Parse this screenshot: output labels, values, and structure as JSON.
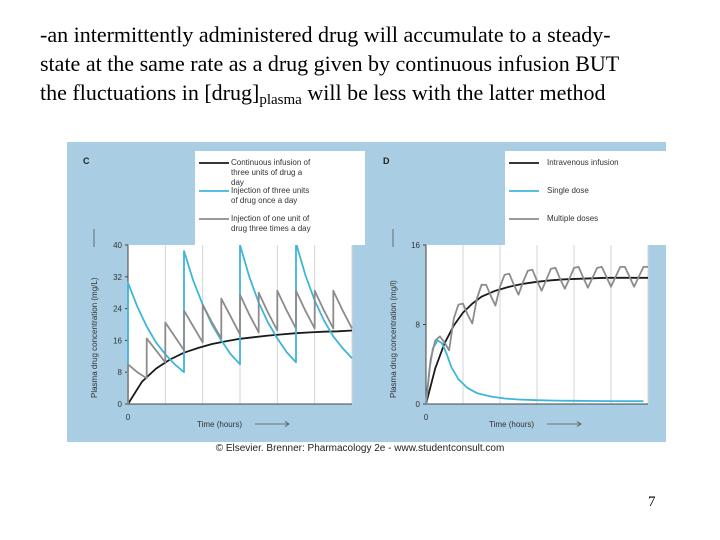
{
  "slide": {
    "line1": "-an intermittently administered drug will accumulate to a steady-",
    "line2": "state at the same rate as a drug given by continuous infusion BUT",
    "line3_pre": "the fluctuations in [drug]",
    "line3_sub": "plasma",
    "line3_post": " will be less with the latter method",
    "page_number": "7"
  },
  "credit": "© Elsevier. Brenner: Pharmacology 2e - www.studentconsult.com",
  "chart_data": [
    {
      "type": "line",
      "panel_label": "C",
      "xlabel": "Time (hours)",
      "ylabel": "Plasma drug concentration (mg/L)",
      "x_tick_labels": [
        "0"
      ],
      "y_tick_labels": [
        "0",
        "8",
        "16",
        "24",
        "32",
        "40"
      ],
      "ylim": [
        0,
        40
      ],
      "x_range": [
        0,
        96
      ],
      "grid": true,
      "legend_position": "top",
      "series": [
        {
          "name": "Continuous infusion of three units of drug a day",
          "color": "#1a1a1a",
          "x": [
            0,
            6,
            12,
            18,
            24,
            30,
            36,
            42,
            48,
            54,
            60,
            66,
            72,
            78,
            84,
            90,
            96
          ],
          "y": [
            0,
            5.6,
            8.9,
            11.2,
            12.9,
            14.1,
            15.1,
            15.8,
            16.4,
            16.8,
            17.2,
            17.5,
            17.8,
            18.0,
            18.2,
            18.3,
            18.5
          ]
        },
        {
          "name": "Injection of three units of drug once a day",
          "color": "#3fb5d8",
          "x": [
            0,
            0,
            4,
            8,
            12,
            16,
            20,
            24,
            24,
            28,
            32,
            36,
            40,
            44,
            48,
            48,
            52,
            56,
            60,
            64,
            68,
            72,
            72,
            76,
            80,
            84,
            88,
            92,
            96
          ],
          "y": [
            0,
            30.5,
            24.5,
            19.5,
            15.5,
            12.5,
            10.0,
            8.0,
            38.5,
            31.0,
            25.0,
            20.0,
            16.0,
            12.5,
            10.0,
            40.0,
            32.0,
            25.5,
            20.5,
            16.5,
            13.0,
            10.5,
            40.5,
            32.5,
            26.0,
            21.0,
            17.0,
            14.0,
            11.5
          ]
        },
        {
          "name": "Injection of one unit of drug three times a day",
          "color": "#8c8c8c",
          "x": [
            0,
            0,
            4,
            8,
            8,
            12,
            16,
            16,
            20,
            24,
            24,
            28,
            32,
            32,
            36,
            40,
            40,
            44,
            48,
            48,
            52,
            56,
            56,
            60,
            64,
            64,
            68,
            72,
            72,
            76,
            80,
            80,
            84,
            88,
            88,
            92,
            96
          ],
          "y": [
            0,
            10.0,
            8.0,
            6.5,
            16.5,
            13.5,
            10.5,
            20.5,
            17.0,
            13.5,
            23.5,
            19.5,
            15.5,
            25.0,
            20.5,
            16.5,
            26.5,
            22.0,
            17.5,
            27.5,
            22.5,
            18.0,
            28.0,
            23.0,
            18.5,
            28.5,
            23.5,
            19.0,
            28.5,
            23.5,
            19.0,
            28.5,
            23.5,
            19.0,
            28.5,
            23.5,
            19.0
          ]
        }
      ]
    },
    {
      "type": "line",
      "panel_label": "D",
      "xlabel": "Time (hours)",
      "ylabel": "Plasma drug concentration (mg/l)",
      "x_tick_labels": [
        "0"
      ],
      "y_tick_labels": [
        "0",
        "8",
        "16"
      ],
      "ylim": [
        0,
        16
      ],
      "x_range": [
        0,
        96
      ],
      "grid": true,
      "legend_position": "top",
      "series": [
        {
          "name": "Intravenous infusion",
          "color": "#1a1a1a",
          "x": [
            0,
            4,
            8,
            12,
            16,
            20,
            24,
            30,
            36,
            42,
            48,
            54,
            60,
            66,
            72,
            78,
            84,
            90,
            96
          ],
          "y": [
            0,
            3.6,
            6.1,
            7.9,
            9.2,
            10.1,
            10.8,
            11.4,
            11.8,
            12.1,
            12.3,
            12.45,
            12.55,
            12.6,
            12.65,
            12.7,
            12.7,
            12.7,
            12.7
          ]
        },
        {
          "name": "Single dose",
          "color": "#3fb5d8",
          "x": [
            0,
            1.5,
            3,
            5,
            7,
            9,
            11,
            14,
            18,
            22,
            28,
            34,
            40,
            48,
            56,
            64,
            72,
            80,
            88,
            94
          ],
          "y": [
            0,
            3.5,
            5.6,
            6.4,
            6.1,
            5.0,
            3.7,
            2.5,
            1.6,
            1.1,
            0.75,
            0.55,
            0.45,
            0.38,
            0.34,
            0.32,
            0.3,
            0.29,
            0.28,
            0.28
          ]
        },
        {
          "name": "Multiple doses",
          "color": "#8c8c8c",
          "x": [
            0,
            2,
            4,
            6,
            8,
            10,
            12,
            14,
            16,
            18,
            20,
            22,
            24,
            26,
            28,
            30,
            32,
            34,
            36,
            38,
            40,
            42,
            44,
            46,
            48,
            50,
            52,
            54,
            56,
            58,
            60,
            62,
            64,
            66,
            68,
            70,
            72,
            74,
            76,
            78,
            80,
            82,
            84,
            86,
            88,
            90,
            92,
            94,
            96
          ],
          "y": [
            0,
            4.5,
            6.4,
            6.8,
            6.2,
            5.4,
            8.6,
            10.0,
            10.1,
            9.0,
            8.1,
            10.6,
            12.0,
            12.0,
            10.9,
            9.9,
            11.8,
            13.0,
            13.1,
            12.0,
            11.0,
            12.3,
            13.4,
            13.5,
            12.4,
            11.4,
            12.5,
            13.6,
            13.7,
            12.6,
            11.6,
            12.6,
            13.7,
            13.8,
            12.7,
            11.7,
            12.7,
            13.7,
            13.8,
            12.8,
            11.8,
            12.8,
            13.8,
            13.8,
            12.8,
            11.8,
            12.8,
            13.8,
            13.8
          ]
        }
      ]
    }
  ]
}
